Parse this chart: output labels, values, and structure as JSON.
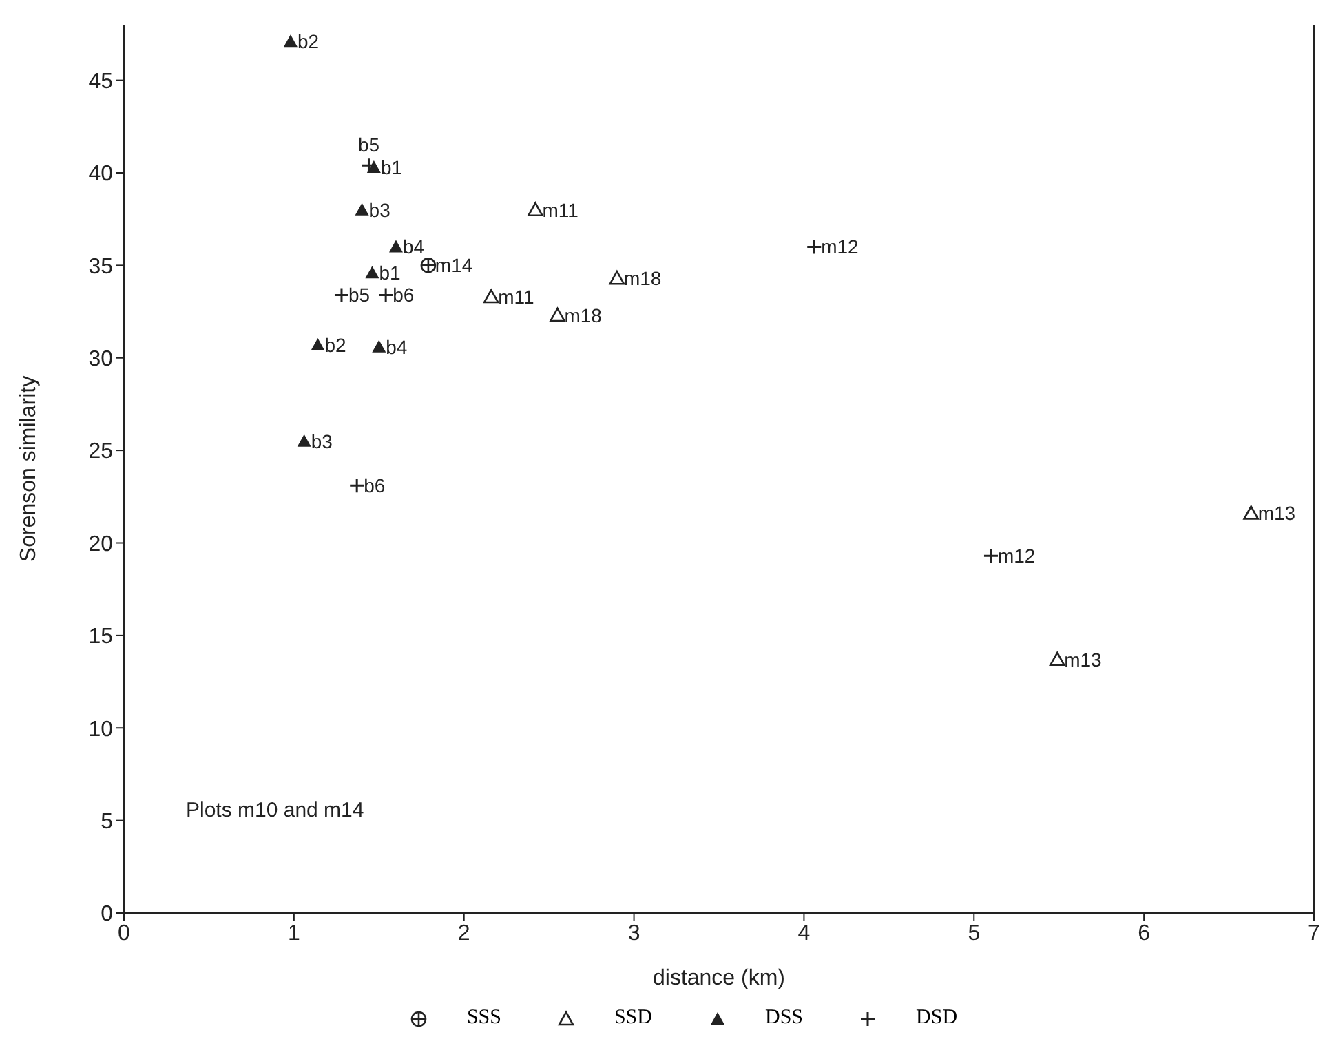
{
  "chart_data": {
    "type": "scatter",
    "xlabel": "distance (km)",
    "ylabel": "Sorenson similarity",
    "xlim": [
      0,
      7
    ],
    "xticks": [
      0,
      1,
      2,
      3,
      4,
      5,
      6,
      7
    ],
    "ylim": [
      0,
      48
    ],
    "yticks": [
      0,
      5,
      10,
      15,
      20,
      25,
      30,
      35,
      40,
      45
    ],
    "legend": "bottom",
    "series": [
      {
        "name": "SSS",
        "color": "#222222",
        "marker": "circle-plus",
        "x": [
          1.79
        ],
        "values": [
          35.0
        ]
      },
      {
        "name": "SSD",
        "color": "#222222",
        "marker": "triangle-open",
        "x": [
          2.42,
          2.16,
          2.9,
          2.55,
          6.63,
          5.49
        ],
        "values": [
          38.0,
          33.3,
          34.3,
          32.3,
          21.6,
          13.7
        ]
      },
      {
        "name": "DSS",
        "color": "#222222",
        "marker": "triangle",
        "x": [
          0.98,
          1.47,
          1.4,
          1.6,
          1.46,
          1.14,
          1.5,
          1.06
        ],
        "values": [
          47.1,
          40.3,
          38.0,
          36.0,
          34.6,
          30.7,
          30.6,
          25.5
        ]
      },
      {
        "name": "DSD",
        "color": "#222222",
        "marker": "cross",
        "x": [
          1.44,
          1.28,
          1.54,
          1.37,
          4.06,
          5.1
        ],
        "values": [
          40.4,
          33.4,
          33.4,
          23.1,
          36.0,
          19.3
        ]
      }
    ],
    "annotations": [
      {
        "text": "m14",
        "x": 1.79,
        "y": 35.0
      },
      {
        "text": "m11",
        "x": 2.42,
        "y": 38.0
      },
      {
        "text": "m11",
        "x": 2.16,
        "y": 33.3
      },
      {
        "text": "m18",
        "x": 2.9,
        "y": 34.3
      },
      {
        "text": "m18",
        "x": 2.55,
        "y": 32.3
      },
      {
        "text": "m13",
        "x": 6.63,
        "y": 21.6
      },
      {
        "text": "m13",
        "x": 5.49,
        "y": 13.7
      },
      {
        "text": "b2",
        "x": 0.98,
        "y": 47.1
      },
      {
        "text": "b1",
        "x": 1.47,
        "y": 40.3
      },
      {
        "text": "b3",
        "x": 1.4,
        "y": 38.0
      },
      {
        "text": "b4",
        "x": 1.6,
        "y": 36.0
      },
      {
        "text": "b1",
        "x": 1.46,
        "y": 34.6
      },
      {
        "text": "b2",
        "x": 1.14,
        "y": 30.7
      },
      {
        "text": "b4",
        "x": 1.5,
        "y": 30.6
      },
      {
        "text": "b3",
        "x": 1.06,
        "y": 25.5
      },
      {
        "text": "b5",
        "x": 1.44,
        "y": 40.4
      },
      {
        "text": "b5",
        "x": 1.28,
        "y": 33.4
      },
      {
        "text": "b6",
        "x": 1.54,
        "y": 33.4
      },
      {
        "text": "b6",
        "x": 1.37,
        "y": 23.1
      },
      {
        "text": "m12",
        "x": 4.06,
        "y": 36.0
      },
      {
        "text": "m12",
        "x": 5.1,
        "y": 19.3
      },
      "Plots m10 and m14"
    ]
  }
}
